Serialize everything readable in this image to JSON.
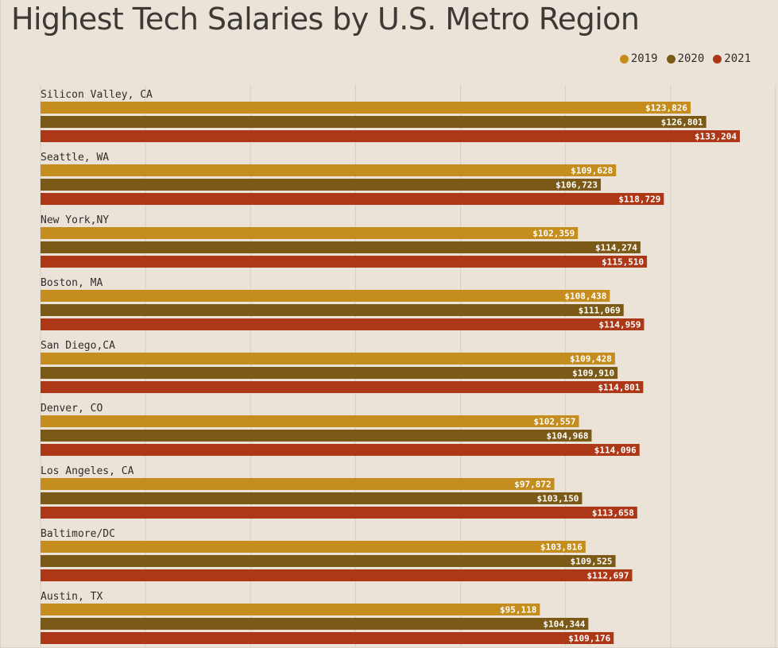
{
  "chart_data": {
    "type": "bar",
    "orientation": "horizontal",
    "title": "Highest Tech Salaries by U.S. Metro Region",
    "legend_position": "top-right",
    "grid": true,
    "categories": [
      "Silicon Valley, CA",
      "Seattle, WA",
      "New York,NY",
      "Boston, MA",
      "San Diego,CA",
      "Denver, CO",
      "Los Angeles, CA",
      "Baltimore/DC",
      "Austin, TX"
    ],
    "series": [
      {
        "name": "2019",
        "color": "#c48d1e",
        "values": [
          123826,
          109628,
          102359,
          108438,
          109428,
          102557,
          97872,
          103816,
          95118
        ],
        "labels": [
          "$123,826",
          "$109,628",
          "$102,359",
          "$108,438",
          "$109,428",
          "$102,557",
          "$97,872",
          "$103,816",
          "$95,118"
        ]
      },
      {
        "name": "2020",
        "color": "#7b5a17",
        "values": [
          126801,
          106723,
          114274,
          111069,
          109910,
          104968,
          103150,
          109525,
          104344
        ],
        "labels": [
          "$126,801",
          "$106,723",
          "$114,274",
          "$111,069",
          "$109,910",
          "$104,968",
          "$103,150",
          "$109,525",
          "$104,344"
        ]
      },
      {
        "name": "2021",
        "color": "#ad3817",
        "values": [
          133204,
          118729,
          115510,
          114959,
          114801,
          114096,
          113658,
          112697,
          109176
        ],
        "labels": [
          "$133,204",
          "$118,729",
          "$115,510",
          "$114,959",
          "$114,801",
          "$114,096",
          "$113,658",
          "$112,697",
          "$109,176"
        ]
      }
    ],
    "xlim": [
      0,
      136000
    ]
  }
}
